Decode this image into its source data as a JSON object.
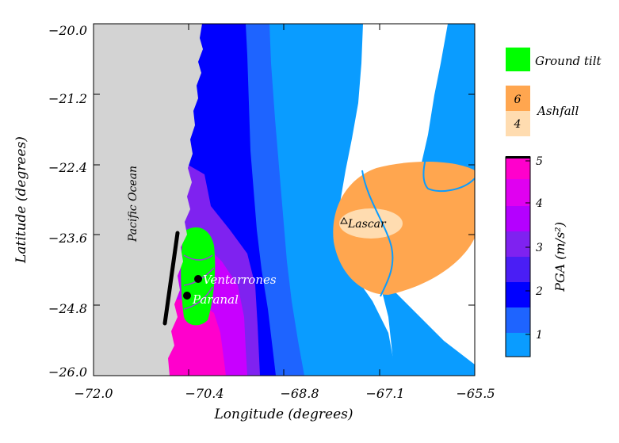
{
  "map": {
    "x_axis": {
      "label": "Longitude (degrees)",
      "ticks": [
        "−72.0",
        "−70.4",
        "−68.8",
        "−67.1",
        "−65.5"
      ]
    },
    "y_axis": {
      "label": "Latitude (degrees)",
      "ticks": [
        "−20.0",
        "−21.2",
        "−22.4",
        "−23.6",
        "−24.8",
        "−26.0"
      ]
    },
    "labels": {
      "ocean": "Pacific Ocean",
      "volcano": "Lascar",
      "site1": "Ventarrones",
      "site2": "Paranal"
    },
    "legend": {
      "ground_tilt": "Ground tilt",
      "ashfall_title": "Ashfall",
      "ashfall_high": "6",
      "ashfall_low": "4",
      "pga_title": "PGA (m/s²)",
      "pga_ticks": [
        "5",
        "4",
        "3",
        "2",
        "1"
      ]
    },
    "colors": {
      "land_clear": "#ffffff",
      "ocean": "#d3d3d3",
      "pga_1": "#0a9cff",
      "pga_1_5": "#1e64ff",
      "pga_2": "#0000ff",
      "pga_3": "#7f22f0",
      "pga_4": "#c800ff",
      "pga_5": "#ff00cc",
      "ground_tilt": "#00ff00",
      "ashfall_6": "#ffa64f",
      "ashfall_4": "#ffdcb0"
    }
  }
}
